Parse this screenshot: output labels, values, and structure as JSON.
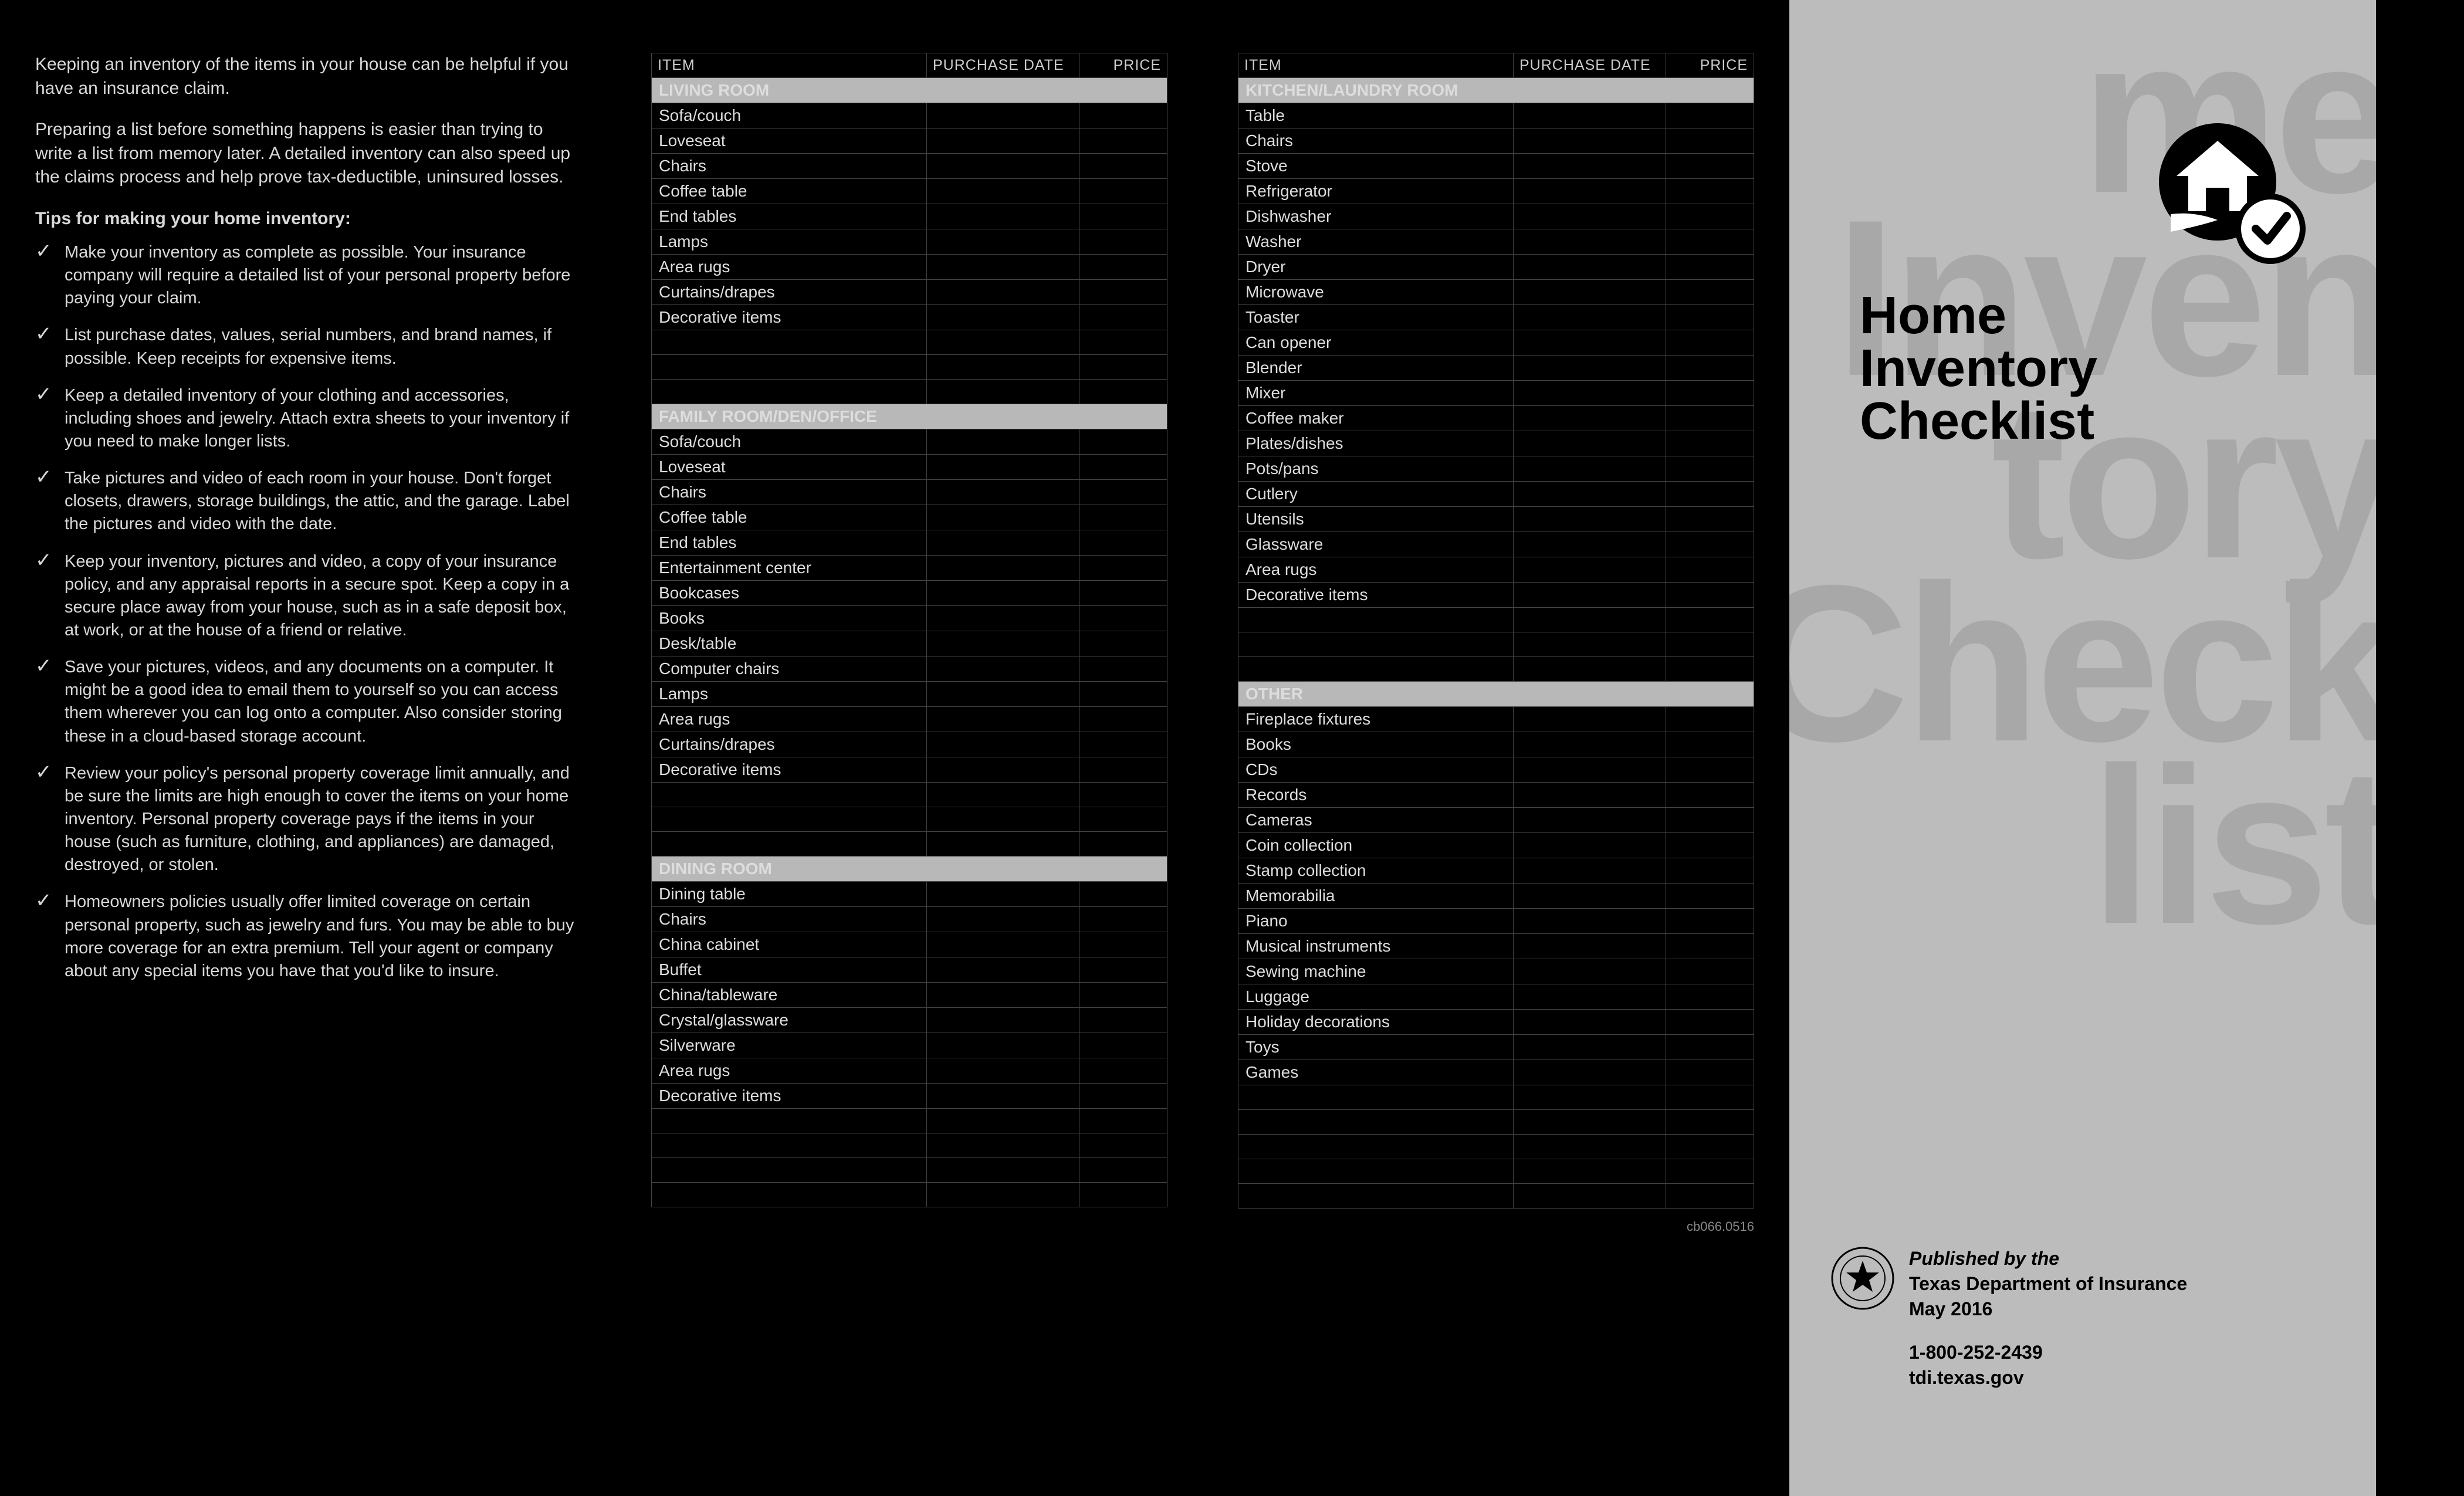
{
  "intro": {
    "p1": "Keeping an inventory of the items in your house can be helpful if you have an insurance claim.",
    "p2": "Preparing a list before something happens is easier than trying to write a list from memory later. A detailed inventory can also speed up the claims process and help prove tax-deductible, uninsured losses.",
    "tips_head": "Tips for making your home inventory:",
    "tips": [
      "Make your inventory as complete as possible. Your insurance company will require a detailed list of your personal property before paying your claim.",
      "List purchase dates, values, serial numbers, and brand names, if possible. Keep receipts for expensive items.",
      "Keep a detailed inventory of your clothing and accessories, including shoes and jewelry. Attach extra sheets to your inventory if you need to make longer lists.",
      "Take pictures and video of each room in your house. Don't forget closets, drawers, storage buildings, the attic, and the garage. Label the pictures and video with the date.",
      "Keep your inventory, pictures and video, a copy of your insurance policy, and any appraisal reports in a secure spot. Keep a copy in a secure place away from your house, such as in a safe deposit box, at work, or at the house of a friend or relative.",
      "Save your pictures, videos, and any documents on a computer. It might be a good idea to email them to yourself so you can access them wherever you can log onto a computer. Also consider storing these in a cloud-based storage account.",
      "Review your policy's personal property coverage limit annually, and be sure the limits are high enough to cover the items on your home inventory. Personal property coverage pays if the items in your house (such as furniture, clothing, and appliances) are damaged, destroyed, or stolen.",
      "Homeowners policies usually offer limited coverage on certain personal property, such as jewelry and furs. You may be able to buy more coverage for an extra premium. Tell your agent or company about any special items you have that you'd like to insure."
    ]
  },
  "columns": {
    "item": "ITEM",
    "date": "PURCHASE DATE",
    "price": "PRICE"
  },
  "sections_col1": [
    {
      "title": "LIVING ROOM",
      "items": [
        "Sofa/couch",
        "Loveseat",
        "Chairs",
        "Coffee table",
        "End tables",
        "Lamps",
        "Area rugs",
        "Curtains/drapes",
        "Decorative items"
      ],
      "blanks": 3
    },
    {
      "title": "FAMILY ROOM/DEN/OFFICE",
      "items": [
        "Sofa/couch",
        "Loveseat",
        "Chairs",
        "Coffee table",
        "End tables",
        "Entertainment center",
        "Bookcases",
        "Books",
        "Desk/table",
        "Computer chairs",
        "Lamps",
        "Area rugs",
        "Curtains/drapes",
        "Decorative items"
      ],
      "blanks": 3
    },
    {
      "title": "DINING ROOM",
      "items": [
        "Dining table",
        "Chairs",
        "China cabinet",
        "Buffet",
        "China/tableware",
        "Crystal/glassware",
        "Silverware",
        "Area rugs",
        "Decorative items"
      ],
      "blanks": 4
    }
  ],
  "sections_col2": [
    {
      "title": "KITCHEN/LAUNDRY ROOM",
      "items": [
        "Table",
        "Chairs",
        "Stove",
        "Refrigerator",
        "Dishwasher",
        "Washer",
        "Dryer",
        "Microwave",
        "Toaster",
        "Can opener",
        "Blender",
        "Mixer",
        "Coffee maker",
        "Plates/dishes",
        "Pots/pans",
        "Cutlery",
        "Utensils",
        "Glassware",
        "Area rugs",
        "Decorative items"
      ],
      "blanks": 3
    },
    {
      "title": "OTHER",
      "items": [
        "Fireplace fixtures",
        "Books",
        "CDs",
        "Records",
        "Cameras",
        "Coin collection",
        "Stamp collection",
        "Memorabilia",
        "Piano",
        "Musical instruments",
        "Sewing machine",
        "Luggage",
        "Holiday decorations",
        "Toys",
        "Games"
      ],
      "blanks": 5
    }
  ],
  "doc_id": "cb066.0516",
  "cover": {
    "bg_line1": "me",
    "bg_line2": "Inven",
    "bg_line3": "tory",
    "bg_line4": "Check",
    "bg_line5": "list",
    "title_l1": "Home",
    "title_l2": "Inventory",
    "title_l3": "Checklist",
    "pub_by": "Published by the",
    "pub_name": "Texas Department of Insurance",
    "pub_date": "May 2016",
    "phone": "1-800-252-2439",
    "url": "tdi.texas.gov"
  },
  "colors": {
    "bg": "#000000",
    "panel_cover_bg": "#bcbcbc",
    "section_header_bg": "#b8b8b8",
    "text_light": "#d8d8d8",
    "border": "#444444"
  }
}
